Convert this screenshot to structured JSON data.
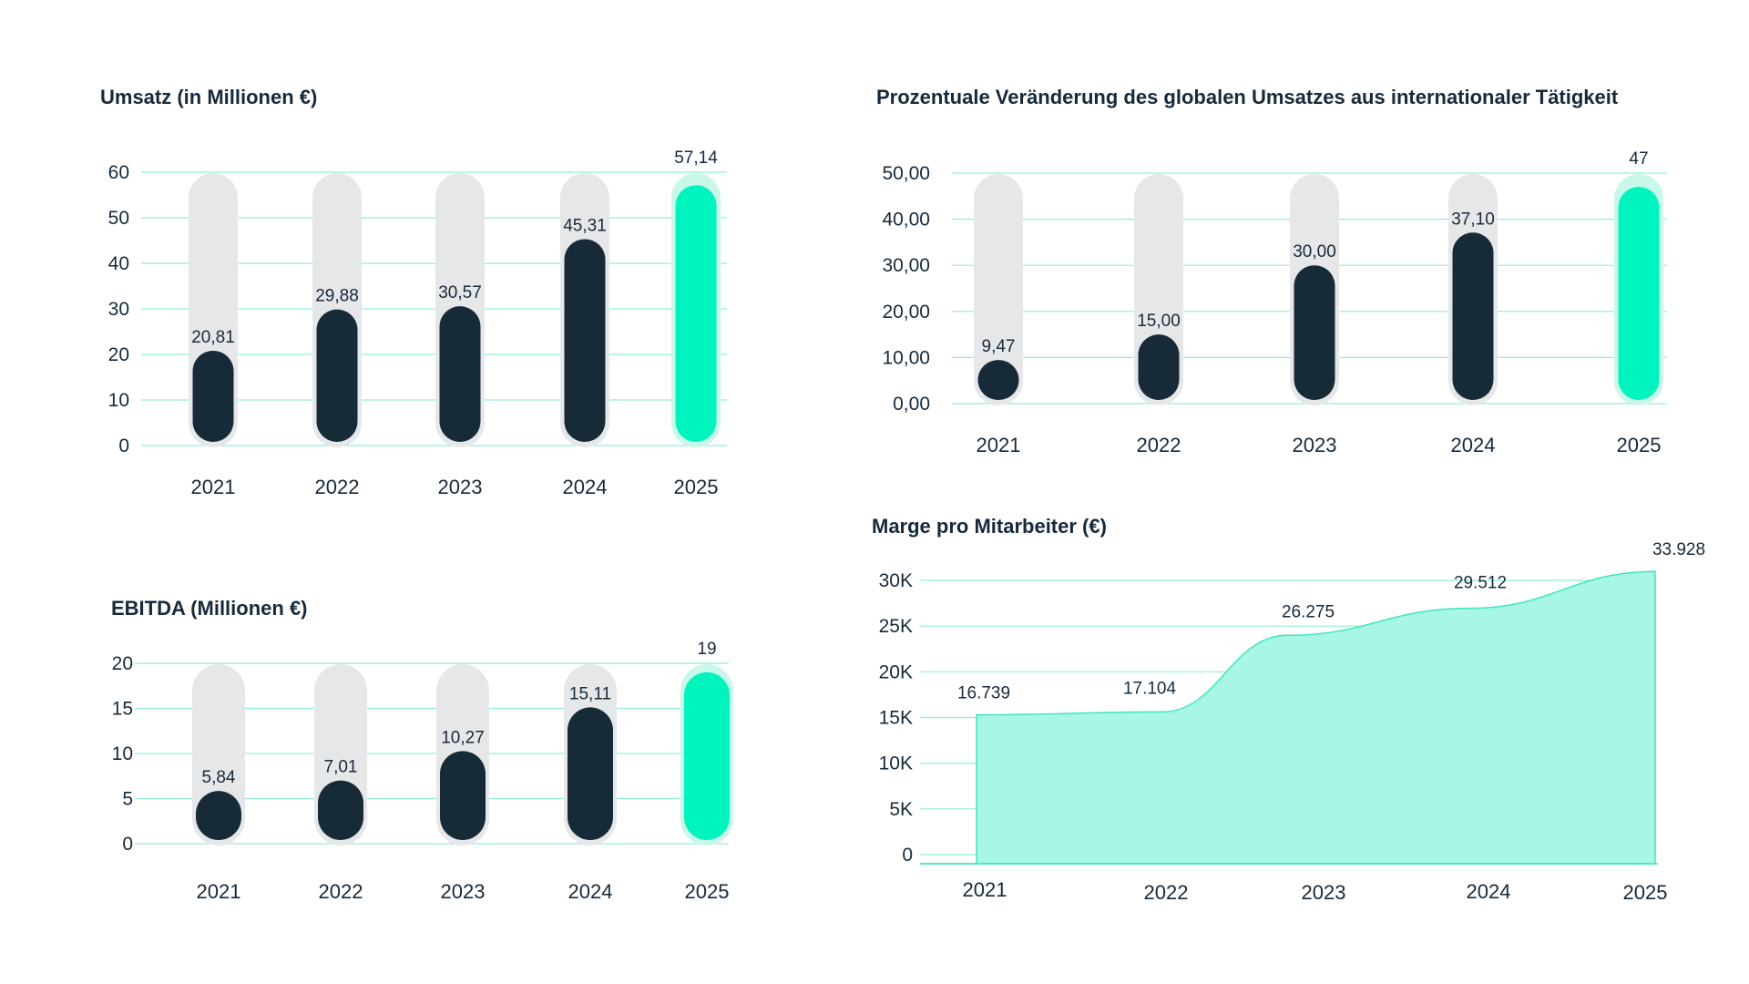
{
  "colors": {
    "dark_bar": "#172a37",
    "highlight_bar": "#00f5be",
    "highlight_track": "#c9f7e9",
    "track": "#e6e7e9",
    "gridline": "#8ff0d3",
    "area_fill": "#a8f7e4",
    "area_stroke": "#3ee6bd",
    "text": "#17293a"
  },
  "chart_data": [
    {
      "id": "umsatz",
      "type": "bar",
      "title": "Umsatz (in Millionen €)",
      "categories": [
        "2021",
        "2022",
        "2023",
        "2024",
        "2025"
      ],
      "values": [
        20.81,
        29.88,
        30.57,
        45.31,
        57.14
      ],
      "value_labels": [
        "20,81",
        "29,88",
        "30,57",
        "45,31",
        "57,14"
      ],
      "highlight": "2025",
      "yticks": [
        0,
        10,
        20,
        30,
        40,
        50,
        60
      ],
      "ytick_labels": [
        "0",
        "10",
        "20",
        "30",
        "40",
        "50",
        "60"
      ],
      "ylim": [
        0,
        60
      ],
      "grid": true
    },
    {
      "id": "prozent",
      "type": "bar",
      "title": "Prozentuale Veränderung des globalen Umsatzes aus internationaler Tätigkeit",
      "categories": [
        "2021",
        "2022",
        "2023",
        "2024",
        "2025"
      ],
      "values": [
        9.47,
        15.0,
        30.0,
        37.1,
        47
      ],
      "value_labels": [
        "9,47",
        "15,00",
        "30,00",
        "37,10",
        "47"
      ],
      "highlight": "2025",
      "yticks": [
        0,
        10,
        20,
        30,
        40,
        50
      ],
      "ytick_labels": [
        "0,00",
        "10,00",
        "20,00",
        "30,00",
        "40,00",
        "50,00"
      ],
      "ylim": [
        0,
        50
      ],
      "grid": true
    },
    {
      "id": "ebitda",
      "type": "bar",
      "title": "EBITDA (Millionen €)",
      "categories": [
        "2021",
        "2022",
        "2023",
        "2024",
        "2025"
      ],
      "values": [
        5.84,
        7.01,
        10.27,
        15.11,
        19
      ],
      "value_labels": [
        "5,84",
        "7,01",
        "10,27",
        "15,11",
        "19"
      ],
      "highlight": "2025",
      "yticks": [
        0,
        5,
        10,
        15,
        20
      ],
      "ytick_labels": [
        "0",
        "5",
        "10",
        "15",
        "20"
      ],
      "ylim": [
        0,
        20
      ],
      "grid": true
    },
    {
      "id": "marge",
      "type": "area",
      "title": "Marge pro Mitarbeiter (€)",
      "categories": [
        "2021",
        "2022",
        "2023",
        "2024",
        "2025"
      ],
      "values": [
        16739,
        17104,
        26275,
        29512,
        33928
      ],
      "value_labels": [
        "16.739",
        "17.104",
        "26.275",
        "29.512",
        "33.928"
      ],
      "yticks": [
        0,
        5000,
        10000,
        15000,
        20000,
        25000,
        30000
      ],
      "ytick_labels": [
        "0",
        "5K",
        "10K",
        "15K",
        "20K",
        "25K",
        "30K"
      ],
      "ylim": [
        0,
        30000
      ],
      "grid": true
    }
  ]
}
